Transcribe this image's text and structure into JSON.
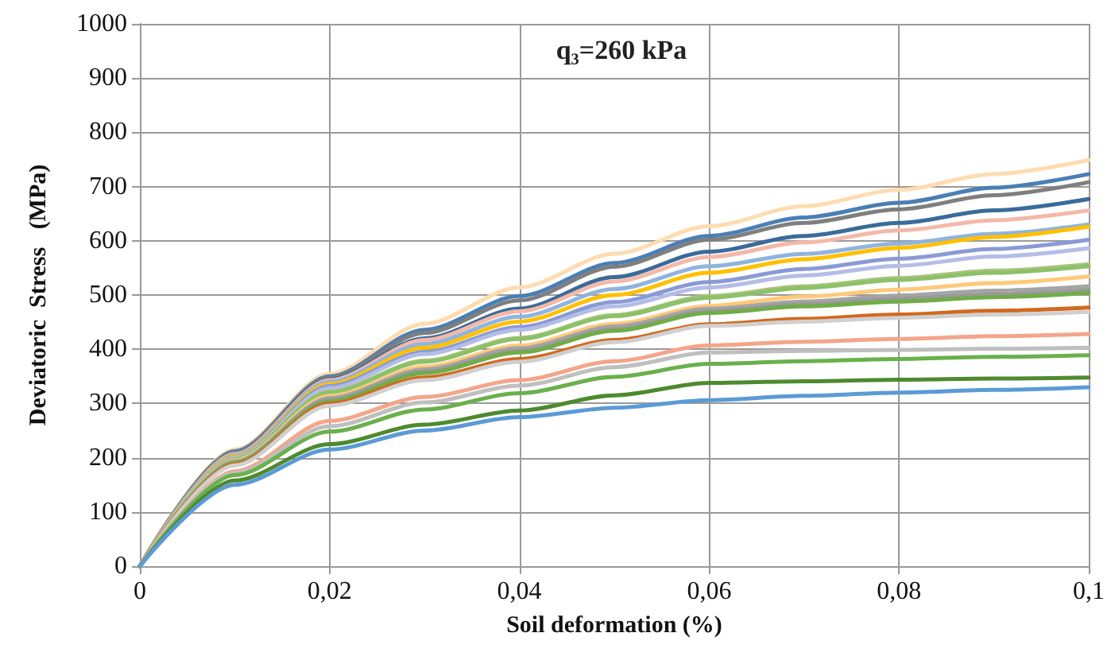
{
  "chart_data": {
    "type": "line",
    "title": "q₃=260 kPa",
    "xlabel": "Soil deformation (%)",
    "ylabel": "Deviatoric  Stress   (MPa)",
    "x": [
      0,
      0.01,
      0.02,
      0.03,
      0.04,
      0.05,
      0.06,
      0.07,
      0.08,
      0.09,
      0.1
    ],
    "series": [
      {
        "color": "#fddcb0",
        "values": [
          0,
          215,
          355,
          447,
          514,
          576,
          627,
          664,
          694,
          723,
          749
        ]
      },
      {
        "color": "#4a7fb5",
        "values": [
          0,
          212,
          350,
          436,
          498,
          559,
          609,
          643,
          670,
          698,
          723
        ]
      },
      {
        "color": "#7f7f7f",
        "values": [
          0,
          210,
          348,
          430,
          490,
          552,
          602,
          633,
          658,
          684,
          708
        ]
      },
      {
        "color": "#3a6b9a",
        "values": [
          0,
          208,
          345,
          420,
          475,
          533,
          580,
          609,
          633,
          656,
          677
        ]
      },
      {
        "color": "#f4b8a8",
        "values": [
          0,
          207,
          343,
          417,
          470,
          525,
          570,
          597,
          619,
          638,
          656
        ]
      },
      {
        "color": "#8fb4de",
        "values": [
          0,
          205,
          340,
          410,
          460,
          511,
          553,
          576,
          595,
          613,
          630
        ]
      },
      {
        "color": "#ffc000",
        "values": [
          0,
          203,
          336,
          403,
          451,
          500,
          541,
          566,
          587,
          607,
          626
        ]
      },
      {
        "color": "#8a9ad6",
        "values": [
          0,
          201,
          332,
          395,
          441,
          487,
          524,
          548,
          567,
          585,
          602
        ]
      },
      {
        "color": "#b4bde6",
        "values": [
          0,
          200,
          328,
          391,
          436,
          479,
          514,
          536,
          554,
          571,
          586
        ]
      },
      {
        "color": "#a9c47f",
        "values": [
          0,
          198,
          322,
          379,
          421,
          463,
          498,
          516,
          531,
          545,
          557
        ]
      },
      {
        "color": "#8cc168",
        "values": [
          0,
          197,
          320,
          377,
          419,
          461,
          495,
          513,
          528,
          541,
          553
        ]
      },
      {
        "color": "#ffc97a",
        "values": [
          0,
          195,
          314,
          368,
          407,
          447,
          480,
          497,
          510,
          522,
          534
        ]
      },
      {
        "color": "#a5a5a5",
        "values": [
          0,
          193,
          310,
          363,
          402,
          442,
          475,
          488,
          499,
          508,
          516
        ]
      },
      {
        "color": "#999999",
        "values": [
          0,
          192,
          307,
          359,
          397,
          437,
          470,
          483,
          493,
          501,
          509
        ]
      },
      {
        "color": "#70ad47",
        "values": [
          0,
          190,
          304,
          356,
          394,
          434,
          467,
          479,
          488,
          496,
          504
        ]
      },
      {
        "color": "#d2691e",
        "values": [
          0,
          188,
          300,
          348,
          382,
          417,
          446,
          456,
          464,
          471,
          477
        ]
      },
      {
        "color": "#d0d0d0",
        "values": [
          0,
          186,
          296,
          343,
          377,
          413,
          443,
          451,
          458,
          464,
          469
        ]
      },
      {
        "color": "#f4a58a",
        "values": [
          0,
          175,
          268,
          312,
          343,
          378,
          407,
          414,
          419,
          424,
          428
        ]
      },
      {
        "color": "#bfbfbf",
        "values": [
          0,
          172,
          258,
          302,
          333,
          367,
          394,
          397,
          399,
          401,
          403
        ]
      },
      {
        "color": "#6ab04c",
        "values": [
          0,
          168,
          248,
          289,
          319,
          349,
          373,
          378,
          382,
          386,
          389
        ]
      },
      {
        "color": "#4e8a2e",
        "values": [
          0,
          158,
          225,
          261,
          287,
          315,
          338,
          341,
          344,
          346,
          348
        ]
      },
      {
        "color": "#5b9bd5",
        "values": [
          0,
          150,
          215,
          250,
          275,
          292,
          306,
          314,
          320,
          325,
          330
        ]
      }
    ],
    "xlim": [
      0,
      0.1
    ],
    "xticks": [
      0,
      {
        "value": 0.02,
        "label": "0,02"
      },
      {
        "value": 0.04,
        "label": "0,04"
      },
      {
        "value": 0.06,
        "label": "0,06"
      },
      {
        "value": 0.08,
        "label": "0,08"
      },
      {
        "value": 0.1,
        "label": "0,1"
      }
    ],
    "ylim": [
      0,
      1000
    ],
    "yticks": [
      0,
      100,
      200,
      300,
      400,
      500,
      600,
      700,
      800,
      900,
      1000
    ],
    "grid": true,
    "marker": "none",
    "line_style": "solid"
  }
}
